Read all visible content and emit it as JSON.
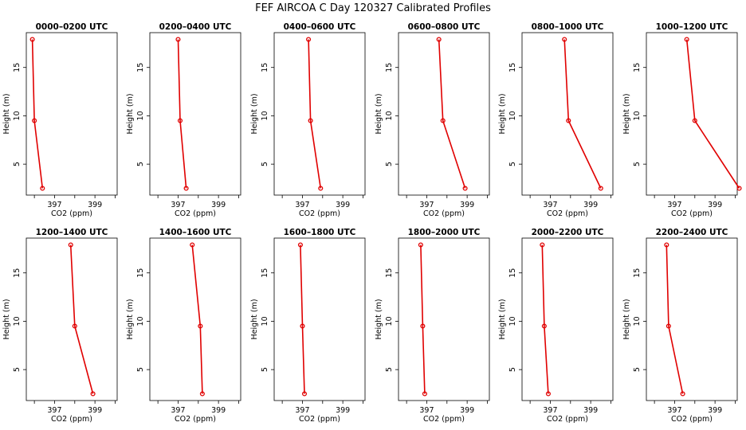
{
  "chart_data": {
    "type": "line",
    "title": "FEF AIRCOA C  Day 120327  Calibrated Profiles",
    "xlabel": "CO2 (ppm)",
    "ylabel": "Height (m)",
    "xlim": [
      395.6,
      400.1
    ],
    "ylim": [
      1.8,
      18.6
    ],
    "xticks": [
      396,
      397,
      398,
      399,
      400
    ],
    "xtick_labels": [
      "",
      "397",
      "",
      "399",
      ""
    ],
    "yticks": [
      5,
      10,
      15
    ],
    "ytick_labels": [
      "5",
      "10",
      "15"
    ],
    "heights": [
      17.9,
      9.5,
      2.5
    ],
    "panels": [
      {
        "title": "0000–0200 UTC",
        "co2": [
          395.9,
          396.0,
          396.4
        ]
      },
      {
        "title": "0200–0400 UTC",
        "co2": [
          397.0,
          397.1,
          397.4
        ]
      },
      {
        "title": "0400–0600 UTC",
        "co2": [
          397.3,
          397.4,
          397.9
        ]
      },
      {
        "title": "0600–0800 UTC",
        "co2": [
          397.6,
          397.8,
          398.9
        ]
      },
      {
        "title": "0800–1000 UTC",
        "co2": [
          397.7,
          397.9,
          399.5
        ]
      },
      {
        "title": "1000–1200 UTC",
        "co2": [
          397.6,
          398.0,
          400.2
        ]
      },
      {
        "title": "1200–1400 UTC",
        "co2": [
          397.8,
          398.0,
          398.9
        ]
      },
      {
        "title": "1400–1600 UTC",
        "co2": [
          397.7,
          398.1,
          398.2
        ]
      },
      {
        "title": "1600–1800 UTC",
        "co2": [
          396.9,
          397.0,
          397.1
        ]
      },
      {
        "title": "1800–2000 UTC",
        "co2": [
          396.7,
          396.8,
          396.9
        ]
      },
      {
        "title": "2000–2200 UTC",
        "co2": [
          396.6,
          396.7,
          396.9
        ]
      },
      {
        "title": "2200–2400 UTC",
        "co2": [
          396.6,
          396.7,
          397.4
        ]
      }
    ],
    "series_color": "#e00000"
  }
}
